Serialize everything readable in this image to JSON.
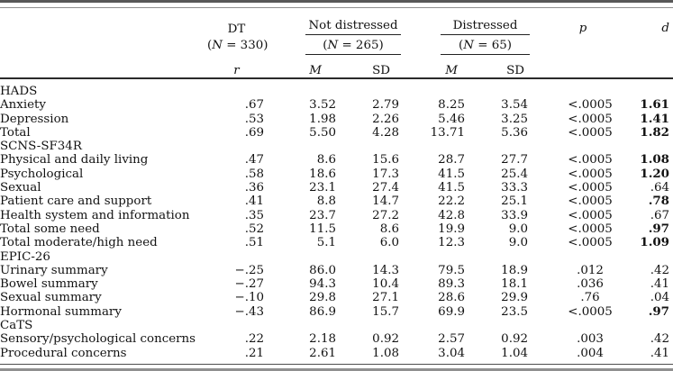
{
  "table": {
    "header": {
      "dt": {
        "label": "DT",
        "n_open": "(",
        "n_var": "N",
        "n_rest": " = 330)",
        "stat": "r"
      },
      "group1": {
        "label": "Not distressed",
        "n_open": "(",
        "n_var": "N",
        "n_rest": " = 265)"
      },
      "group2": {
        "label": "Distressed",
        "n_open": "(",
        "n_var": "N",
        "n_rest": " = 65)"
      },
      "stats": {
        "m": "M",
        "sd": "SD",
        "p": "p",
        "d": "d"
      }
    },
    "rows": [
      {
        "type": "section",
        "label": "HADS"
      },
      {
        "type": "data",
        "label": "Anxiety",
        "r": ".67",
        "m1": "3.52",
        "sd1": "2.79",
        "m2": "8.25",
        "sd2": "3.54",
        "p": "<.0005",
        "d": "1.61",
        "d_bold": true
      },
      {
        "type": "data",
        "label": "Depression",
        "r": ".53",
        "m1": "1.98",
        "sd1": "2.26",
        "m2": "5.46",
        "sd2": "3.25",
        "p": "<.0005",
        "d": "1.41",
        "d_bold": true
      },
      {
        "type": "data",
        "label": "Total",
        "r": ".69",
        "m1": "5.50",
        "sd1": "4.28",
        "m2": "13.71",
        "sd2": "5.36",
        "p": "<.0005",
        "d": "1.82",
        "d_bold": true
      },
      {
        "type": "section",
        "label": "SCNS-SF34R"
      },
      {
        "type": "data",
        "label": "Physical and daily living",
        "r": ".47",
        "m1": "8.6",
        "sd1": "15.6",
        "m2": "28.7",
        "sd2": "27.7",
        "p": "<.0005",
        "d": "1.08",
        "d_bold": true
      },
      {
        "type": "data",
        "label": "Psychological",
        "r": ".58",
        "m1": "18.6",
        "sd1": "17.3",
        "m2": "41.5",
        "sd2": "25.4",
        "p": "<.0005",
        "d": "1.20",
        "d_bold": true
      },
      {
        "type": "data",
        "label": "Sexual",
        "r": ".36",
        "m1": "23.1",
        "sd1": "27.4",
        "m2": "41.5",
        "sd2": "33.3",
        "p": "<.0005",
        "d": ".64",
        "d_bold": false
      },
      {
        "type": "data",
        "label": "Patient care and support",
        "r": ".41",
        "m1": "8.8",
        "sd1": "14.7",
        "m2": "22.2",
        "sd2": "25.1",
        "p": "<.0005",
        "d": ".78",
        "d_bold": true
      },
      {
        "type": "data",
        "label": "Health system and information",
        "r": ".35",
        "m1": "23.7",
        "sd1": "27.2",
        "m2": "42.8",
        "sd2": "33.9",
        "p": "<.0005",
        "d": ".67",
        "d_bold": false
      },
      {
        "type": "data",
        "label": "Total some need",
        "r": ".52",
        "m1": "11.5",
        "sd1": "8.6",
        "m2": "19.9",
        "sd2": "9.0",
        "p": "<.0005",
        "d": ".97",
        "d_bold": true
      },
      {
        "type": "data",
        "label": "Total moderate/high need",
        "r": ".51",
        "m1": "5.1",
        "sd1": "6.0",
        "m2": "12.3",
        "sd2": "9.0",
        "p": "<.0005",
        "d": "1.09",
        "d_bold": true
      },
      {
        "type": "section",
        "label": "EPIC-26"
      },
      {
        "type": "data",
        "label": "Urinary summary",
        "r": "−.25",
        "m1": "86.0",
        "sd1": "14.3",
        "m2": "79.5",
        "sd2": "18.9",
        "p": ".012",
        "d": ".42",
        "d_bold": false
      },
      {
        "type": "data",
        "label": "Bowel summary",
        "r": "−.27",
        "m1": "94.3",
        "sd1": "10.4",
        "m2": "89.3",
        "sd2": "18.1",
        "p": ".036",
        "d": ".41",
        "d_bold": false
      },
      {
        "type": "data",
        "label": "Sexual summary",
        "r": "−.10",
        "m1": "29.8",
        "sd1": "27.1",
        "m2": "28.6",
        "sd2": "29.9",
        "p": ".76",
        "d": ".04",
        "d_bold": false
      },
      {
        "type": "data",
        "label": "Hormonal summary",
        "r": "−.43",
        "m1": "86.9",
        "sd1": "15.7",
        "m2": "69.9",
        "sd2": "23.5",
        "p": "<.0005",
        "d": ".97",
        "d_bold": true
      },
      {
        "type": "section",
        "label": "CaTS"
      },
      {
        "type": "data",
        "label": "Sensory/psychological concerns",
        "r": ".22",
        "m1": "2.18",
        "sd1": "0.92",
        "m2": "2.57",
        "sd2": "0.92",
        "p": ".003",
        "d": ".42",
        "d_bold": false
      },
      {
        "type": "data",
        "label": "Procedural concerns",
        "r": ".21",
        "m1": "2.61",
        "sd1": "1.08",
        "m2": "3.04",
        "sd2": "1.04",
        "p": ".004",
        "d": ".41",
        "d_bold": false
      }
    ]
  }
}
